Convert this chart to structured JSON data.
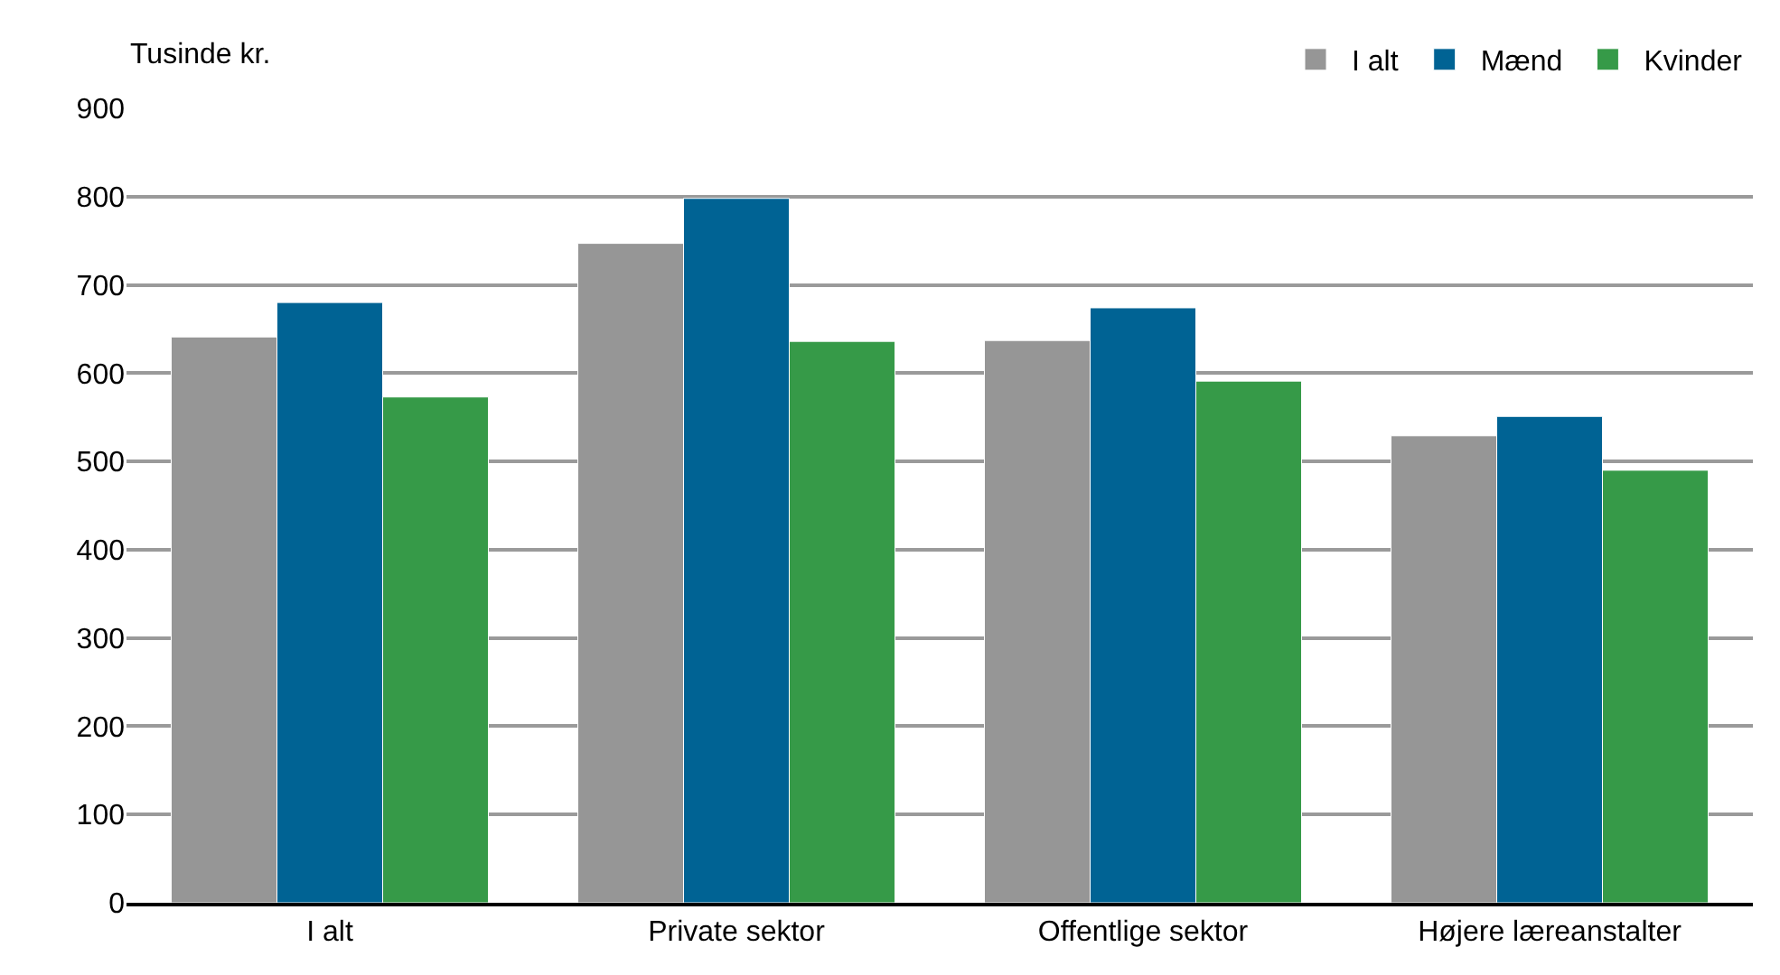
{
  "chart_data": {
    "type": "bar",
    "ylabel": "Tusinde kr.",
    "categories": [
      "I alt",
      "Private sektor",
      "Offentlige sektor",
      "Højere læreanstalter"
    ],
    "series": [
      {
        "name": "I alt",
        "color": "#969696",
        "values": [
          641,
          747,
          637,
          529
        ]
      },
      {
        "name": "Mænd",
        "color": "#006394",
        "values": [
          680,
          798,
          674,
          551
        ]
      },
      {
        "name": "Kvinder",
        "color": "#369a48",
        "values": [
          573,
          636,
          591,
          490
        ]
      }
    ],
    "ylim": [
      0,
      900
    ],
    "yticks": [
      0,
      100,
      200,
      300,
      400,
      500,
      600,
      700,
      800,
      900
    ],
    "grid": "y",
    "legend": "top right"
  }
}
